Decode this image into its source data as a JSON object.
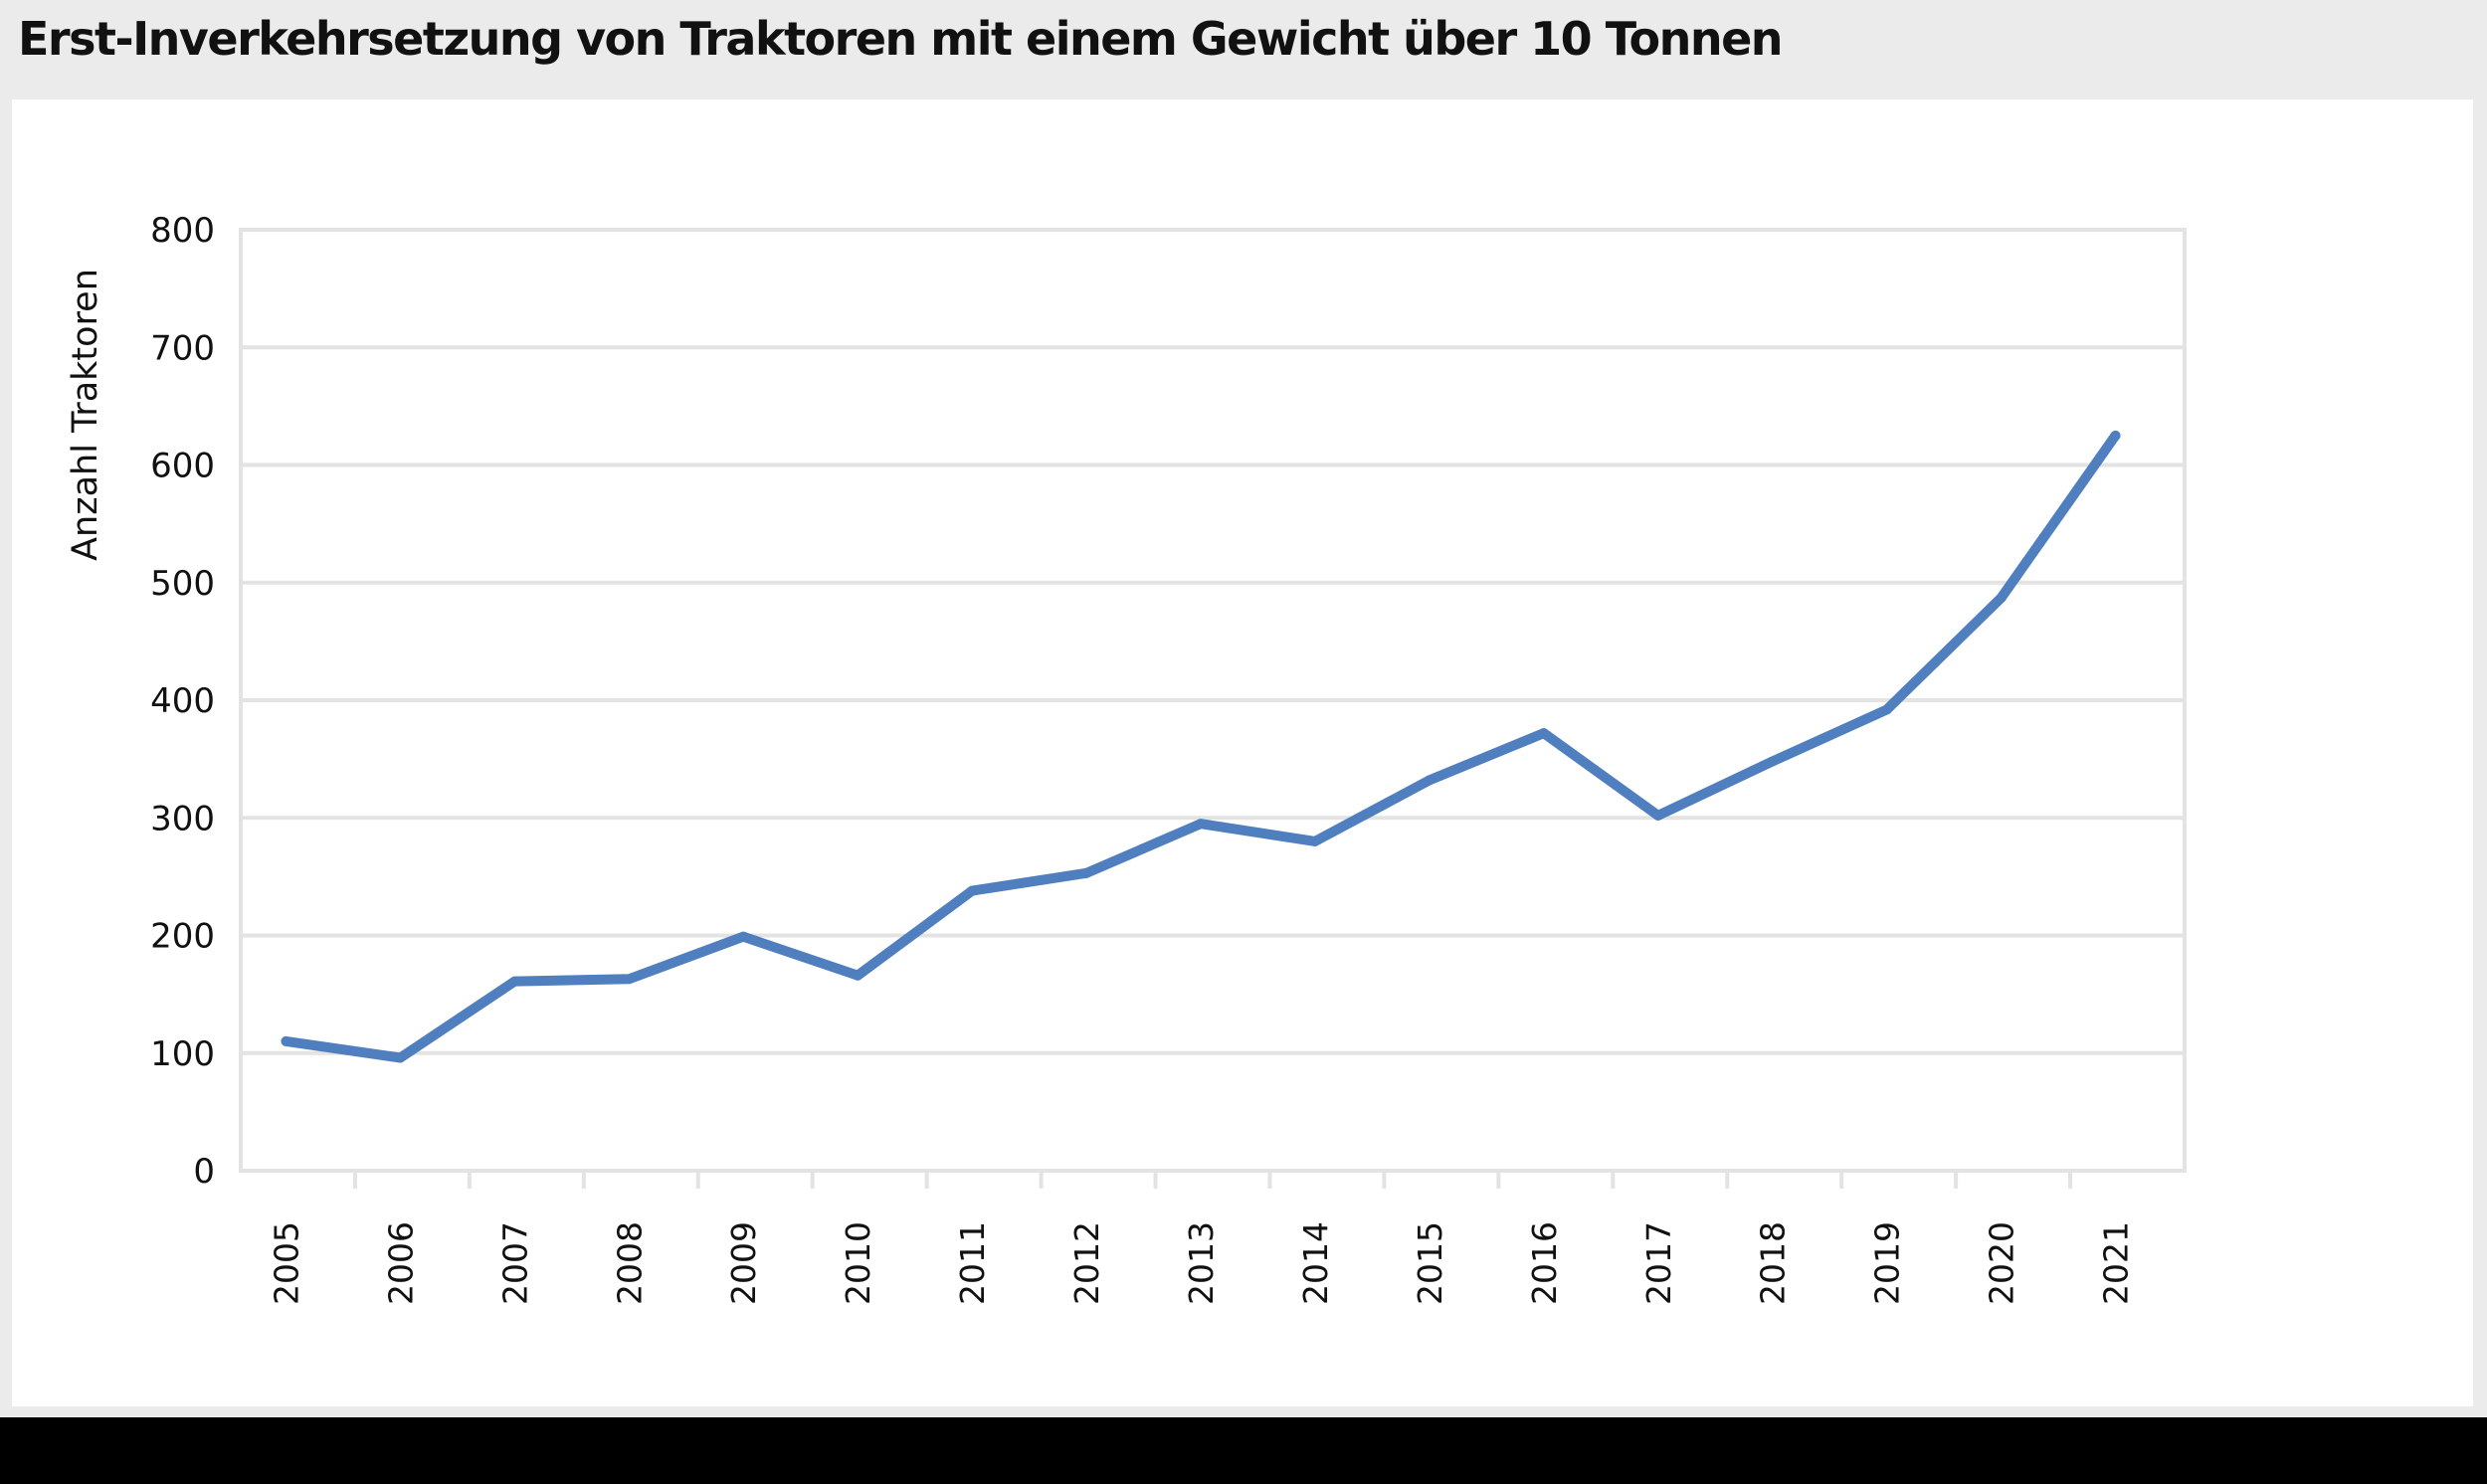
{
  "title": "Erst-Inverkehrsetzung von Traktoren mit einem Gewicht über 10 Tonnen",
  "chart_data": {
    "type": "line",
    "title": "Erst-Inverkehrsetzung von Traktoren mit einem Gewicht über 10 Tonnen",
    "xlabel": "",
    "ylabel": "Anzahl Traktoren",
    "ylim": [
      0,
      800
    ],
    "yticks": [
      0,
      100,
      200,
      300,
      400,
      500,
      600,
      700,
      800
    ],
    "grid": "horizontal",
    "categories": [
      "2005",
      "2006",
      "2007",
      "2008",
      "2009",
      "2010",
      "2011",
      "2012",
      "2013",
      "2014",
      "2015",
      "2016",
      "2017",
      "2018",
      "2019",
      "2020",
      "2021"
    ],
    "series": [
      {
        "values": [
          110,
          96,
          161,
          163,
          199,
          166,
          238,
          253,
          295,
          280,
          332,
          372,
          302,
          348,
          392,
          487,
          625
        ],
        "color": "#4f7fbf"
      }
    ]
  }
}
